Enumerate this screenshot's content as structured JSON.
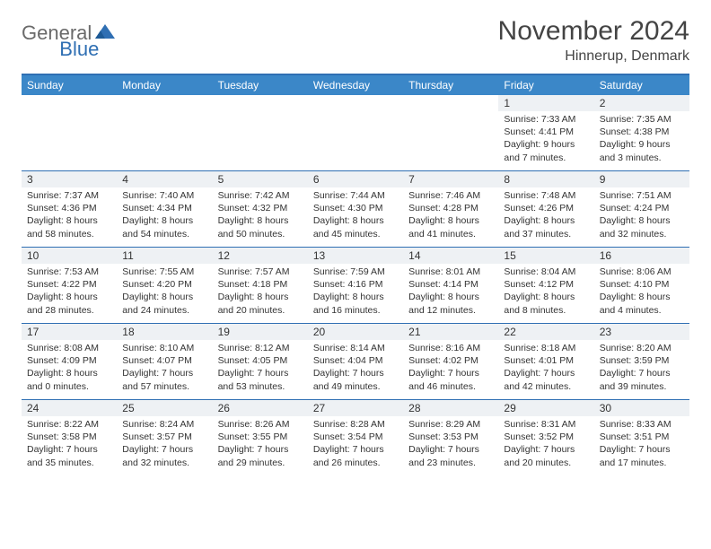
{
  "logo": {
    "text1": "General",
    "text2": "Blue"
  },
  "title": "November 2024",
  "location": "Hinnerup, Denmark",
  "colors": {
    "header_bg": "#3b87c8",
    "border": "#2f6fb3",
    "daynum_bg": "#eef1f4",
    "text": "#333333",
    "logo_gray": "#6a6a6a",
    "logo_blue": "#2f6fb3"
  },
  "dayNames": [
    "Sunday",
    "Monday",
    "Tuesday",
    "Wednesday",
    "Thursday",
    "Friday",
    "Saturday"
  ],
  "weeks": [
    [
      {
        "n": "",
        "sunrise": "",
        "sunset": "",
        "day": ""
      },
      {
        "n": "",
        "sunrise": "",
        "sunset": "",
        "day": ""
      },
      {
        "n": "",
        "sunrise": "",
        "sunset": "",
        "day": ""
      },
      {
        "n": "",
        "sunrise": "",
        "sunset": "",
        "day": ""
      },
      {
        "n": "",
        "sunrise": "",
        "sunset": "",
        "day": ""
      },
      {
        "n": "1",
        "sunrise": "Sunrise: 7:33 AM",
        "sunset": "Sunset: 4:41 PM",
        "day": "Daylight: 9 hours and 7 minutes."
      },
      {
        "n": "2",
        "sunrise": "Sunrise: 7:35 AM",
        "sunset": "Sunset: 4:38 PM",
        "day": "Daylight: 9 hours and 3 minutes."
      }
    ],
    [
      {
        "n": "3",
        "sunrise": "Sunrise: 7:37 AM",
        "sunset": "Sunset: 4:36 PM",
        "day": "Daylight: 8 hours and 58 minutes."
      },
      {
        "n": "4",
        "sunrise": "Sunrise: 7:40 AM",
        "sunset": "Sunset: 4:34 PM",
        "day": "Daylight: 8 hours and 54 minutes."
      },
      {
        "n": "5",
        "sunrise": "Sunrise: 7:42 AM",
        "sunset": "Sunset: 4:32 PM",
        "day": "Daylight: 8 hours and 50 minutes."
      },
      {
        "n": "6",
        "sunrise": "Sunrise: 7:44 AM",
        "sunset": "Sunset: 4:30 PM",
        "day": "Daylight: 8 hours and 45 minutes."
      },
      {
        "n": "7",
        "sunrise": "Sunrise: 7:46 AM",
        "sunset": "Sunset: 4:28 PM",
        "day": "Daylight: 8 hours and 41 minutes."
      },
      {
        "n": "8",
        "sunrise": "Sunrise: 7:48 AM",
        "sunset": "Sunset: 4:26 PM",
        "day": "Daylight: 8 hours and 37 minutes."
      },
      {
        "n": "9",
        "sunrise": "Sunrise: 7:51 AM",
        "sunset": "Sunset: 4:24 PM",
        "day": "Daylight: 8 hours and 32 minutes."
      }
    ],
    [
      {
        "n": "10",
        "sunrise": "Sunrise: 7:53 AM",
        "sunset": "Sunset: 4:22 PM",
        "day": "Daylight: 8 hours and 28 minutes."
      },
      {
        "n": "11",
        "sunrise": "Sunrise: 7:55 AM",
        "sunset": "Sunset: 4:20 PM",
        "day": "Daylight: 8 hours and 24 minutes."
      },
      {
        "n": "12",
        "sunrise": "Sunrise: 7:57 AM",
        "sunset": "Sunset: 4:18 PM",
        "day": "Daylight: 8 hours and 20 minutes."
      },
      {
        "n": "13",
        "sunrise": "Sunrise: 7:59 AM",
        "sunset": "Sunset: 4:16 PM",
        "day": "Daylight: 8 hours and 16 minutes."
      },
      {
        "n": "14",
        "sunrise": "Sunrise: 8:01 AM",
        "sunset": "Sunset: 4:14 PM",
        "day": "Daylight: 8 hours and 12 minutes."
      },
      {
        "n": "15",
        "sunrise": "Sunrise: 8:04 AM",
        "sunset": "Sunset: 4:12 PM",
        "day": "Daylight: 8 hours and 8 minutes."
      },
      {
        "n": "16",
        "sunrise": "Sunrise: 8:06 AM",
        "sunset": "Sunset: 4:10 PM",
        "day": "Daylight: 8 hours and 4 minutes."
      }
    ],
    [
      {
        "n": "17",
        "sunrise": "Sunrise: 8:08 AM",
        "sunset": "Sunset: 4:09 PM",
        "day": "Daylight: 8 hours and 0 minutes."
      },
      {
        "n": "18",
        "sunrise": "Sunrise: 8:10 AM",
        "sunset": "Sunset: 4:07 PM",
        "day": "Daylight: 7 hours and 57 minutes."
      },
      {
        "n": "19",
        "sunrise": "Sunrise: 8:12 AM",
        "sunset": "Sunset: 4:05 PM",
        "day": "Daylight: 7 hours and 53 minutes."
      },
      {
        "n": "20",
        "sunrise": "Sunrise: 8:14 AM",
        "sunset": "Sunset: 4:04 PM",
        "day": "Daylight: 7 hours and 49 minutes."
      },
      {
        "n": "21",
        "sunrise": "Sunrise: 8:16 AM",
        "sunset": "Sunset: 4:02 PM",
        "day": "Daylight: 7 hours and 46 minutes."
      },
      {
        "n": "22",
        "sunrise": "Sunrise: 8:18 AM",
        "sunset": "Sunset: 4:01 PM",
        "day": "Daylight: 7 hours and 42 minutes."
      },
      {
        "n": "23",
        "sunrise": "Sunrise: 8:20 AM",
        "sunset": "Sunset: 3:59 PM",
        "day": "Daylight: 7 hours and 39 minutes."
      }
    ],
    [
      {
        "n": "24",
        "sunrise": "Sunrise: 8:22 AM",
        "sunset": "Sunset: 3:58 PM",
        "day": "Daylight: 7 hours and 35 minutes."
      },
      {
        "n": "25",
        "sunrise": "Sunrise: 8:24 AM",
        "sunset": "Sunset: 3:57 PM",
        "day": "Daylight: 7 hours and 32 minutes."
      },
      {
        "n": "26",
        "sunrise": "Sunrise: 8:26 AM",
        "sunset": "Sunset: 3:55 PM",
        "day": "Daylight: 7 hours and 29 minutes."
      },
      {
        "n": "27",
        "sunrise": "Sunrise: 8:28 AM",
        "sunset": "Sunset: 3:54 PM",
        "day": "Daylight: 7 hours and 26 minutes."
      },
      {
        "n": "28",
        "sunrise": "Sunrise: 8:29 AM",
        "sunset": "Sunset: 3:53 PM",
        "day": "Daylight: 7 hours and 23 minutes."
      },
      {
        "n": "29",
        "sunrise": "Sunrise: 8:31 AM",
        "sunset": "Sunset: 3:52 PM",
        "day": "Daylight: 7 hours and 20 minutes."
      },
      {
        "n": "30",
        "sunrise": "Sunrise: 8:33 AM",
        "sunset": "Sunset: 3:51 PM",
        "day": "Daylight: 7 hours and 17 minutes."
      }
    ]
  ]
}
